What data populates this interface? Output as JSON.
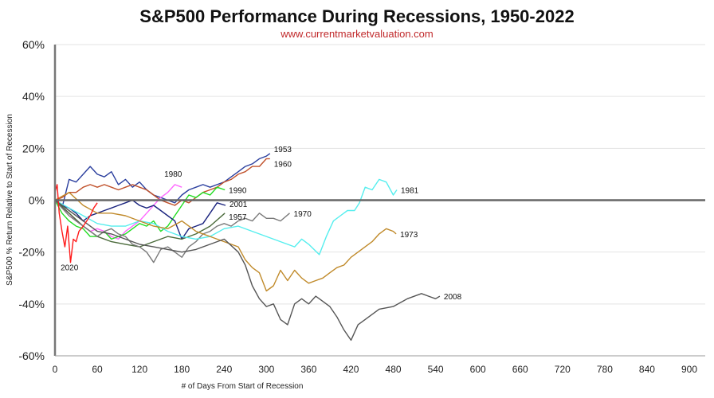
{
  "chart_data": {
    "type": "line",
    "title": "S&P500 Performance During Recessions, 1950-2022",
    "subtitle": "www.currentmarketvaluation.com",
    "xlabel": "# of Days From Start of Recession",
    "ylabel": "S&P500 % Return Relative to Start of Recession",
    "xlim": [
      0,
      900
    ],
    "ylim": [
      -60,
      60
    ],
    "xticks": [
      0,
      60,
      120,
      180,
      240,
      300,
      360,
      420,
      480,
      540,
      600,
      660,
      720,
      780,
      840,
      900
    ],
    "yticks": [
      -60,
      -40,
      -20,
      0,
      20,
      40,
      60
    ],
    "ytick_labels": [
      "-60%",
      "-40%",
      "-20%",
      "0%",
      "20%",
      "40%",
      "60%"
    ],
    "grid": "horizontal",
    "series": [
      {
        "name": "1953",
        "color": "#2b3f9e",
        "points": [
          [
            0,
            0
          ],
          [
            10,
            -3
          ],
          [
            20,
            8
          ],
          [
            30,
            7
          ],
          [
            40,
            10
          ],
          [
            50,
            13
          ],
          [
            60,
            10
          ],
          [
            70,
            9
          ],
          [
            80,
            11
          ],
          [
            90,
            6
          ],
          [
            100,
            8
          ],
          [
            110,
            5
          ],
          [
            120,
            7
          ],
          [
            130,
            4
          ],
          [
            140,
            2
          ],
          [
            150,
            1
          ],
          [
            160,
            0
          ],
          [
            170,
            -1
          ],
          [
            180,
            2
          ],
          [
            190,
            4
          ],
          [
            200,
            5
          ],
          [
            210,
            6
          ],
          [
            220,
            5
          ],
          [
            230,
            6
          ],
          [
            240,
            7
          ],
          [
            250,
            9
          ],
          [
            260,
            11
          ],
          [
            270,
            13
          ],
          [
            280,
            14
          ],
          [
            290,
            16
          ],
          [
            300,
            17
          ],
          [
            305,
            18
          ]
        ]
      },
      {
        "name": "1960",
        "color": "#c0502a",
        "points": [
          [
            0,
            0
          ],
          [
            10,
            1
          ],
          [
            20,
            3
          ],
          [
            30,
            3
          ],
          [
            40,
            5
          ],
          [
            50,
            6
          ],
          [
            60,
            5
          ],
          [
            70,
            6
          ],
          [
            80,
            5
          ],
          [
            90,
            4
          ],
          [
            100,
            5
          ],
          [
            110,
            6
          ],
          [
            120,
            5
          ],
          [
            130,
            4
          ],
          [
            140,
            2
          ],
          [
            150,
            0
          ],
          [
            160,
            -1
          ],
          [
            170,
            -2
          ],
          [
            180,
            0
          ],
          [
            190,
            -1
          ],
          [
            200,
            1
          ],
          [
            210,
            3
          ],
          [
            220,
            4
          ],
          [
            230,
            5
          ],
          [
            240,
            7
          ],
          [
            250,
            8
          ],
          [
            260,
            10
          ],
          [
            270,
            11
          ],
          [
            280,
            13
          ],
          [
            290,
            13
          ],
          [
            300,
            16
          ],
          [
            305,
            16
          ]
        ]
      },
      {
        "name": "1980",
        "color": "#ff66ff",
        "points": [
          [
            0,
            0
          ],
          [
            10,
            -3
          ],
          [
            20,
            -5
          ],
          [
            30,
            -8
          ],
          [
            40,
            -10
          ],
          [
            50,
            -12
          ],
          [
            60,
            -11
          ],
          [
            70,
            -12
          ],
          [
            80,
            -14
          ],
          [
            90,
            -15
          ],
          [
            100,
            -12
          ],
          [
            110,
            -10
          ],
          [
            120,
            -8
          ],
          [
            130,
            -5
          ],
          [
            140,
            -2
          ],
          [
            150,
            1
          ],
          [
            160,
            3
          ],
          [
            170,
            6
          ],
          [
            180,
            5
          ]
        ]
      },
      {
        "name": "1990",
        "color": "#22dd22",
        "points": [
          [
            0,
            0
          ],
          [
            10,
            -5
          ],
          [
            20,
            -8
          ],
          [
            30,
            -10
          ],
          [
            40,
            -11
          ],
          [
            50,
            -14
          ],
          [
            60,
            -14
          ],
          [
            70,
            -12
          ],
          [
            80,
            -15
          ],
          [
            90,
            -14
          ],
          [
            100,
            -13
          ],
          [
            110,
            -11
          ],
          [
            120,
            -9
          ],
          [
            130,
            -10
          ],
          [
            140,
            -8
          ],
          [
            150,
            -12
          ],
          [
            160,
            -10
          ],
          [
            170,
            -6
          ],
          [
            180,
            -2
          ],
          [
            190,
            2
          ],
          [
            200,
            1
          ],
          [
            210,
            3
          ],
          [
            220,
            2
          ],
          [
            230,
            5
          ],
          [
            241,
            4
          ]
        ]
      },
      {
        "name": "2001",
        "color": "#1a237e",
        "points": [
          [
            0,
            0
          ],
          [
            10,
            -2
          ],
          [
            20,
            -3
          ],
          [
            30,
            -5
          ],
          [
            40,
            -8
          ],
          [
            50,
            -6
          ],
          [
            60,
            -5
          ],
          [
            70,
            -4
          ],
          [
            80,
            -3
          ],
          [
            90,
            -2
          ],
          [
            100,
            -1
          ],
          [
            110,
            0
          ],
          [
            120,
            -2
          ],
          [
            130,
            -3
          ],
          [
            140,
            -2
          ],
          [
            150,
            -4
          ],
          [
            160,
            -6
          ],
          [
            170,
            -8
          ],
          [
            180,
            -15
          ],
          [
            190,
            -11
          ],
          [
            200,
            -10
          ],
          [
            210,
            -9
          ],
          [
            220,
            -5
          ],
          [
            230,
            -1
          ],
          [
            242,
            -2
          ]
        ]
      },
      {
        "name": "1957",
        "color": "#4a6a3a",
        "points": [
          [
            0,
            0
          ],
          [
            20,
            -5
          ],
          [
            40,
            -10
          ],
          [
            60,
            -14
          ],
          [
            80,
            -16
          ],
          [
            100,
            -17
          ],
          [
            120,
            -18
          ],
          [
            140,
            -16
          ],
          [
            160,
            -14
          ],
          [
            180,
            -15
          ],
          [
            200,
            -13
          ],
          [
            220,
            -10
          ],
          [
            241,
            -5
          ]
        ]
      },
      {
        "name": "1970",
        "color": "#7a7a7a",
        "points": [
          [
            0,
            0
          ],
          [
            10,
            -3
          ],
          [
            20,
            -6
          ],
          [
            30,
            -8
          ],
          [
            40,
            -10
          ],
          [
            50,
            -12
          ],
          [
            60,
            -14
          ],
          [
            70,
            -12
          ],
          [
            80,
            -11
          ],
          [
            90,
            -13
          ],
          [
            100,
            -14
          ],
          [
            110,
            -17
          ],
          [
            120,
            -18
          ],
          [
            130,
            -20
          ],
          [
            140,
            -24
          ],
          [
            150,
            -19
          ],
          [
            160,
            -18
          ],
          [
            170,
            -20
          ],
          [
            180,
            -22
          ],
          [
            190,
            -18
          ],
          [
            200,
            -16
          ],
          [
            210,
            -13
          ],
          [
            220,
            -12
          ],
          [
            230,
            -10
          ],
          [
            240,
            -9
          ],
          [
            250,
            -10
          ],
          [
            260,
            -8
          ],
          [
            270,
            -7
          ],
          [
            280,
            -8
          ],
          [
            290,
            -5
          ],
          [
            300,
            -7
          ],
          [
            310,
            -7
          ],
          [
            320,
            -8
          ],
          [
            333,
            -5
          ]
        ]
      },
      {
        "name": "1981",
        "color": "#55eeee",
        "points": [
          [
            0,
            0
          ],
          [
            20,
            -3
          ],
          [
            40,
            -6
          ],
          [
            60,
            -9
          ],
          [
            80,
            -10
          ],
          [
            100,
            -10
          ],
          [
            120,
            -8
          ],
          [
            140,
            -9
          ],
          [
            160,
            -12
          ],
          [
            180,
            -14
          ],
          [
            200,
            -15
          ],
          [
            220,
            -14
          ],
          [
            240,
            -11
          ],
          [
            260,
            -10
          ],
          [
            280,
            -12
          ],
          [
            300,
            -14
          ],
          [
            320,
            -16
          ],
          [
            340,
            -18
          ],
          [
            350,
            -15
          ],
          [
            360,
            -17
          ],
          [
            375,
            -21
          ],
          [
            385,
            -14
          ],
          [
            395,
            -8
          ],
          [
            405,
            -6
          ],
          [
            415,
            -4
          ],
          [
            425,
            -4
          ],
          [
            432,
            -1
          ],
          [
            440,
            5
          ],
          [
            450,
            4
          ],
          [
            460,
            8
          ],
          [
            470,
            7
          ],
          [
            480,
            2
          ],
          [
            485,
            4
          ]
        ]
      },
      {
        "name": "1973",
        "color": "#c08a2a",
        "points": [
          [
            0,
            0
          ],
          [
            20,
            3
          ],
          [
            40,
            -2
          ],
          [
            60,
            -5
          ],
          [
            80,
            -5
          ],
          [
            100,
            -6
          ],
          [
            120,
            -8
          ],
          [
            140,
            -10
          ],
          [
            160,
            -11
          ],
          [
            180,
            -8
          ],
          [
            200,
            -12
          ],
          [
            220,
            -14
          ],
          [
            240,
            -16
          ],
          [
            260,
            -18
          ],
          [
            270,
            -23
          ],
          [
            280,
            -26
          ],
          [
            290,
            -28
          ],
          [
            300,
            -35
          ],
          [
            310,
            -33
          ],
          [
            320,
            -27
          ],
          [
            330,
            -31
          ],
          [
            340,
            -27
          ],
          [
            350,
            -30
          ],
          [
            360,
            -32
          ],
          [
            370,
            -31
          ],
          [
            380,
            -30
          ],
          [
            390,
            -28
          ],
          [
            400,
            -26
          ],
          [
            410,
            -25
          ],
          [
            420,
            -22
          ],
          [
            430,
            -20
          ],
          [
            440,
            -18
          ],
          [
            450,
            -16
          ],
          [
            460,
            -13
          ],
          [
            470,
            -11
          ],
          [
            480,
            -12
          ],
          [
            484,
            -13
          ]
        ]
      },
      {
        "name": "2008",
        "color": "#555555",
        "points": [
          [
            0,
            0
          ],
          [
            20,
            -4
          ],
          [
            40,
            -8
          ],
          [
            60,
            -12
          ],
          [
            80,
            -13
          ],
          [
            100,
            -15
          ],
          [
            120,
            -17
          ],
          [
            140,
            -18
          ],
          [
            160,
            -19
          ],
          [
            180,
            -20
          ],
          [
            200,
            -19
          ],
          [
            220,
            -17
          ],
          [
            240,
            -15
          ],
          [
            260,
            -20
          ],
          [
            270,
            -25
          ],
          [
            280,
            -33
          ],
          [
            290,
            -38
          ],
          [
            300,
            -41
          ],
          [
            310,
            -40
          ],
          [
            320,
            -46
          ],
          [
            330,
            -48
          ],
          [
            340,
            -40
          ],
          [
            350,
            -38
          ],
          [
            360,
            -40
          ],
          [
            370,
            -37
          ],
          [
            380,
            -39
          ],
          [
            390,
            -41
          ],
          [
            400,
            -45
          ],
          [
            410,
            -50
          ],
          [
            420,
            -54
          ],
          [
            430,
            -48
          ],
          [
            440,
            -46
          ],
          [
            460,
            -42
          ],
          [
            480,
            -41
          ],
          [
            500,
            -38
          ],
          [
            520,
            -36
          ],
          [
            530,
            -37
          ],
          [
            540,
            -38
          ],
          [
            546,
            -37
          ]
        ]
      },
      {
        "name": "2020",
        "color": "#ff1a1a",
        "points": [
          [
            0,
            3
          ],
          [
            3,
            6
          ],
          [
            6,
            -5
          ],
          [
            10,
            -12
          ],
          [
            14,
            -18
          ],
          [
            18,
            -10
          ],
          [
            22,
            -24
          ],
          [
            26,
            -15
          ],
          [
            30,
            -16
          ],
          [
            34,
            -12
          ],
          [
            40,
            -10
          ],
          [
            45,
            -8
          ],
          [
            50,
            -6
          ],
          [
            55,
            -3
          ],
          [
            60,
            -1
          ]
        ]
      }
    ]
  }
}
